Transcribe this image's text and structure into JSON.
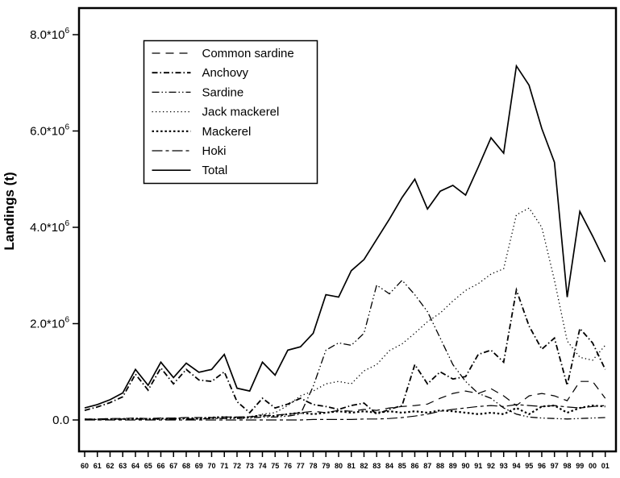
{
  "figure": {
    "y_axis_title": "Landings (t)",
    "foreground_color": "#000000",
    "background_color": "#ffffff"
  },
  "chart_data": {
    "type": "line",
    "title": "",
    "xlabel": "",
    "ylabel": "Landings (t)",
    "legend_position": "upper-left-inside",
    "grid": false,
    "ylim_millions": [
      0,
      8.57
    ],
    "y_ticks": [
      {
        "value_millions": 0,
        "mantissa": "0.0",
        "exponent": ""
      },
      {
        "value_millions": 2,
        "mantissa": "2.0*10",
        "exponent": "6"
      },
      {
        "value_millions": 4,
        "mantissa": "4.0*10",
        "exponent": "6"
      },
      {
        "value_millions": 6,
        "mantissa": "6.0*10",
        "exponent": "6"
      },
      {
        "value_millions": 8,
        "mantissa": "8.0*10",
        "exponent": "6"
      }
    ],
    "x_labels": [
      "60",
      "61",
      "62",
      "63",
      "64",
      "65",
      "66",
      "67",
      "68",
      "69",
      "70",
      "71",
      "72",
      "73",
      "74",
      "75",
      "76",
      "77",
      "78",
      "79",
      "80",
      "81",
      "82",
      "83",
      "84",
      "85",
      "86",
      "87",
      "88",
      "89",
      "90",
      "91",
      "92",
      "93",
      "94",
      "95",
      "96",
      "97",
      "98",
      "99",
      "00",
      "01"
    ],
    "values_unit": "million tonnes",
    "series": [
      {
        "name": "Common sardine",
        "dash": "10,7",
        "width": 1.2,
        "values_millions": [
          0.02,
          0.02,
          0.03,
          0.03,
          0.04,
          0.03,
          0.04,
          0.04,
          0.05,
          0.05,
          0.05,
          0.06,
          0.06,
          0.07,
          0.08,
          0.1,
          0.12,
          0.15,
          0.18,
          0.15,
          0.2,
          0.18,
          0.22,
          0.2,
          0.25,
          0.28,
          0.3,
          0.33,
          0.45,
          0.55,
          0.6,
          0.55,
          0.65,
          0.5,
          0.3,
          0.5,
          0.55,
          0.5,
          0.4,
          0.8,
          0.8,
          0.45
        ]
      },
      {
        "name": "Anchovy",
        "dash": "7,3,1.5,3",
        "width": 1.8,
        "values_millions": [
          0.2,
          0.27,
          0.36,
          0.48,
          0.95,
          0.62,
          1.08,
          0.75,
          1.05,
          0.83,
          0.8,
          1.0,
          0.38,
          0.15,
          0.45,
          0.25,
          0.33,
          0.45,
          0.32,
          0.28,
          0.22,
          0.3,
          0.35,
          0.12,
          0.22,
          0.3,
          1.15,
          0.75,
          1.0,
          0.85,
          0.9,
          1.36,
          1.45,
          1.2,
          2.7,
          1.95,
          1.47,
          1.7,
          0.72,
          1.9,
          1.6,
          1.05
        ]
      },
      {
        "name": "Sardine",
        "dash": "9,3,1.5,3,1.5,3",
        "width": 1.3,
        "values_millions": [
          0.01,
          0.01,
          0.01,
          0.02,
          0.02,
          0.02,
          0.02,
          0.02,
          0.02,
          0.02,
          0.03,
          0.03,
          0.03,
          0.04,
          0.06,
          0.06,
          0.08,
          0.12,
          0.7,
          1.45,
          1.6,
          1.55,
          1.8,
          2.8,
          2.62,
          2.9,
          2.6,
          2.25,
          1.7,
          1.15,
          0.8,
          0.55,
          0.45,
          0.25,
          0.12,
          0.06,
          0.04,
          0.03,
          0.02,
          0.03,
          0.04,
          0.05
        ]
      },
      {
        "name": "Jack mackerel",
        "dash": "1.3,3.2",
        "width": 1.3,
        "values_millions": [
          0.01,
          0.01,
          0.01,
          0.01,
          0.01,
          0.01,
          0.01,
          0.02,
          0.02,
          0.02,
          0.03,
          0.04,
          0.05,
          0.05,
          0.12,
          0.15,
          0.3,
          0.5,
          0.6,
          0.75,
          0.8,
          0.75,
          1.02,
          1.15,
          1.44,
          1.58,
          1.8,
          2.04,
          2.22,
          2.47,
          2.69,
          2.83,
          3.03,
          3.14,
          4.26,
          4.4,
          4.0,
          2.9,
          1.64,
          1.3,
          1.24,
          1.55
        ]
      },
      {
        "name": "Mackerel",
        "dash": "2.5,2.8",
        "width": 2.2,
        "values_millions": [
          0.01,
          0.01,
          0.02,
          0.02,
          0.03,
          0.02,
          0.03,
          0.03,
          0.04,
          0.03,
          0.05,
          0.06,
          0.05,
          0.06,
          0.1,
          0.08,
          0.12,
          0.15,
          0.12,
          0.15,
          0.18,
          0.15,
          0.18,
          0.15,
          0.18,
          0.15,
          0.18,
          0.15,
          0.2,
          0.18,
          0.15,
          0.12,
          0.15,
          0.12,
          0.25,
          0.12,
          0.28,
          0.3,
          0.15,
          0.25,
          0.3,
          0.28
        ]
      },
      {
        "name": "Hoki",
        "dash": "13,4,4,4",
        "width": 1.2,
        "values_millions": [
          0.0,
          0.0,
          0.0,
          0.0,
          0.0,
          0.0,
          0.0,
          0.0,
          0.0,
          0.0,
          0.0,
          0.0,
          0.0,
          0.0,
          0.0,
          0.0,
          0.0,
          0.0,
          0.01,
          0.01,
          0.01,
          0.01,
          0.02,
          0.02,
          0.03,
          0.05,
          0.08,
          0.12,
          0.18,
          0.22,
          0.25,
          0.28,
          0.3,
          0.28,
          0.32,
          0.3,
          0.28,
          0.3,
          0.27,
          0.25,
          0.28,
          0.3
        ]
      },
      {
        "name": "Total",
        "dash": "",
        "width": 1.7,
        "values_millions": [
          0.25,
          0.32,
          0.42,
          0.56,
          1.05,
          0.72,
          1.2,
          0.88,
          1.18,
          0.99,
          1.05,
          1.36,
          0.66,
          0.6,
          1.2,
          0.93,
          1.45,
          1.52,
          1.8,
          2.6,
          2.55,
          3.1,
          3.33,
          3.75,
          4.17,
          4.62,
          5.0,
          4.38,
          4.75,
          4.87,
          4.67,
          5.25,
          5.86,
          5.54,
          7.35,
          6.95,
          6.05,
          5.35,
          2.55,
          4.33,
          3.82,
          3.28
        ]
      }
    ]
  }
}
